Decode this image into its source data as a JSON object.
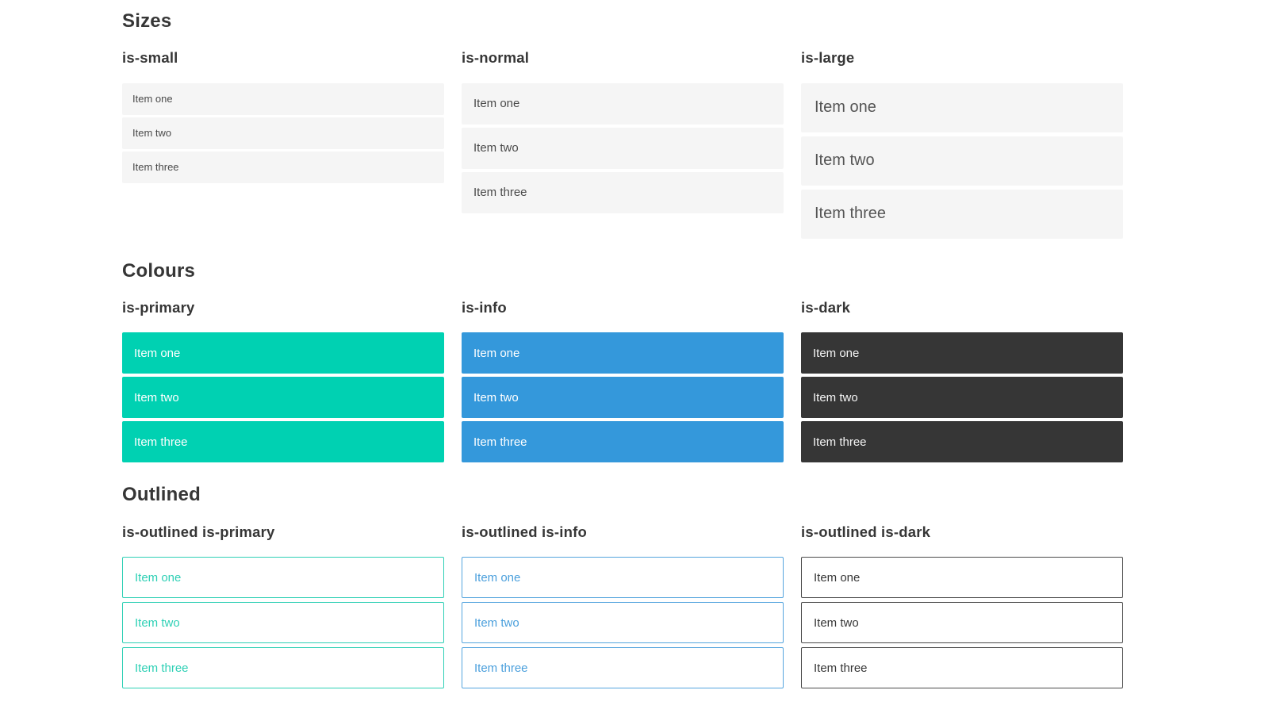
{
  "colors": {
    "primary": "#00d1b2",
    "info": "#3498db",
    "dark": "#363636",
    "item_background": "#f5f5f5",
    "item_text": "#4a4a4a",
    "heading_text": "#363636",
    "page_background": "#ffffff"
  },
  "sections": [
    {
      "title": "Sizes",
      "groups": [
        {
          "label": "is-small",
          "items": [
            "Item one",
            "Item two",
            "Item three"
          ]
        },
        {
          "label": "is-normal",
          "items": [
            "Item one",
            "Item two",
            "Item three"
          ]
        },
        {
          "label": "is-large",
          "items": [
            "Item one",
            "Item two",
            "Item three"
          ]
        }
      ]
    },
    {
      "title": "Colours",
      "groups": [
        {
          "label": "is-primary",
          "items": [
            "Item one",
            "Item two",
            "Item three"
          ]
        },
        {
          "label": "is-info",
          "items": [
            "Item one",
            "Item two",
            "Item three"
          ]
        },
        {
          "label": "is-dark",
          "items": [
            "Item one",
            "Item two",
            "Item three"
          ]
        }
      ]
    },
    {
      "title": "Outlined",
      "groups": [
        {
          "label": "is-outlined is-primary",
          "items": [
            "Item one",
            "Item two",
            "Item three"
          ]
        },
        {
          "label": "is-outlined is-info",
          "items": [
            "Item one",
            "Item two",
            "Item three"
          ]
        },
        {
          "label": "is-outlined is-dark",
          "items": [
            "Item one",
            "Item two",
            "Item three"
          ]
        }
      ]
    }
  ]
}
